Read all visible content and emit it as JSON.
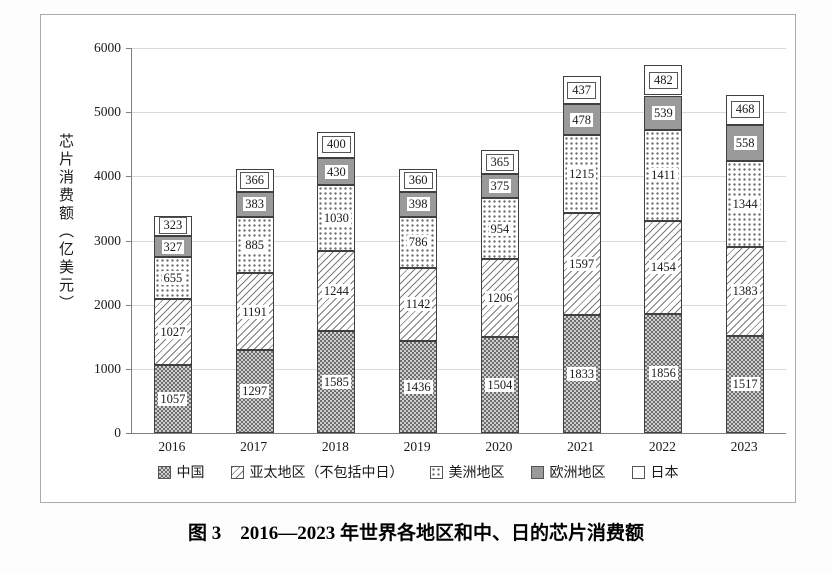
{
  "figure": {
    "caption": "图 3　2016—2023 年世界各地区和中、日的芯片消费额",
    "y_axis_title": "芯片消费额（亿美元）"
  },
  "chart_data": {
    "type": "bar",
    "stacked": true,
    "title": "",
    "xlabel": "",
    "ylabel": "芯片消费额（亿美元）",
    "ylim": [
      0,
      6000
    ],
    "yticks": [
      0,
      1000,
      2000,
      3000,
      4000,
      5000,
      6000
    ],
    "grid": true,
    "legend_position": "bottom",
    "categories": [
      "2016",
      "2017",
      "2018",
      "2019",
      "2020",
      "2021",
      "2022",
      "2023"
    ],
    "series": [
      {
        "name": "中国",
        "pattern": "grid",
        "values": [
          1057,
          1297,
          1585,
          1436,
          1504,
          1833,
          1856,
          1517
        ]
      },
      {
        "name": "亚太地区（不包括中日）",
        "pattern": "diagonal",
        "values": [
          1027,
          1191,
          1244,
          1142,
          1206,
          1597,
          1454,
          1383
        ]
      },
      {
        "name": "美洲地区",
        "pattern": "dots",
        "values": [
          655,
          885,
          1030,
          786,
          954,
          1215,
          1411,
          1344
        ]
      },
      {
        "name": "欧洲地区",
        "pattern": "solid",
        "values": [
          327,
          383,
          430,
          398,
          375,
          478,
          539,
          558
        ]
      },
      {
        "name": "日本",
        "pattern": "white",
        "values": [
          323,
          366,
          400,
          360,
          365,
          437,
          482,
          468
        ]
      }
    ]
  }
}
